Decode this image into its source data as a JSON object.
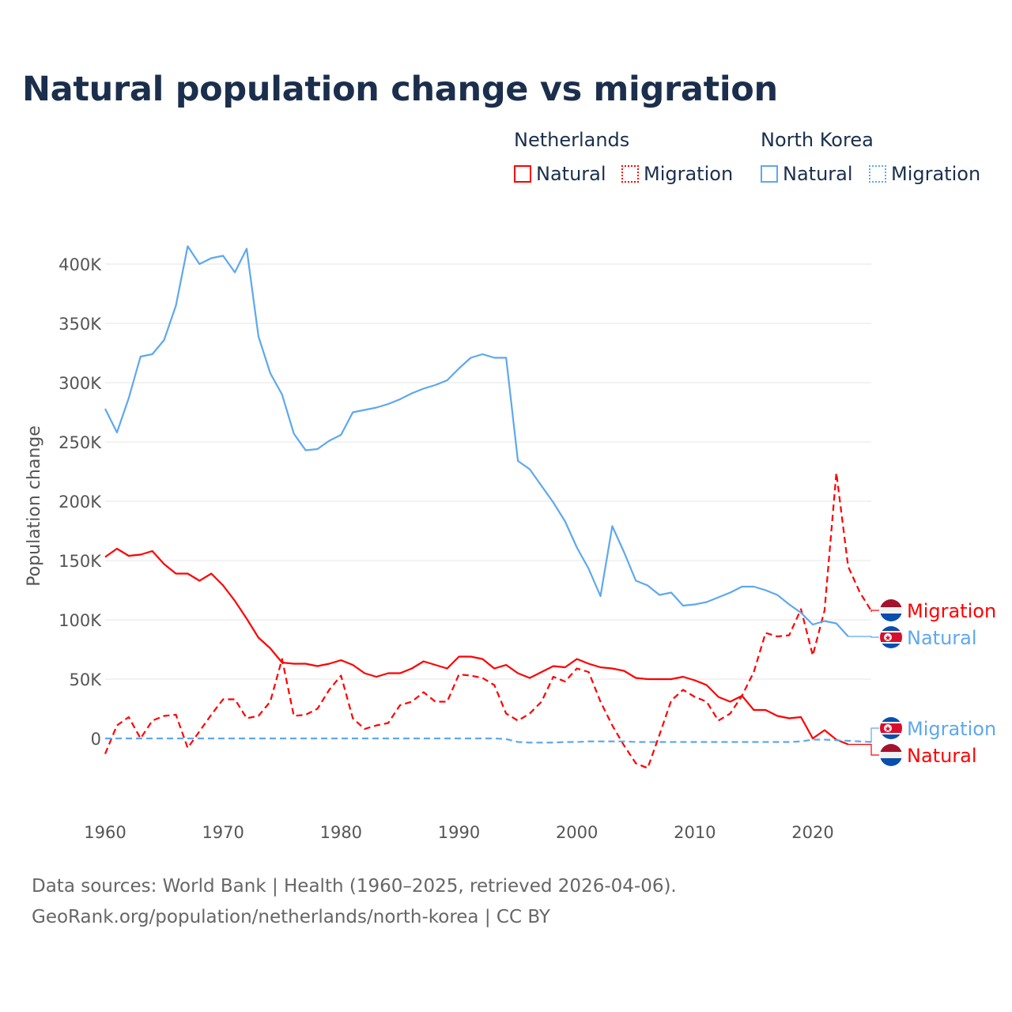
{
  "chart_data": {
    "type": "line",
    "title": "Natural population change vs migration",
    "xlabel": "",
    "ylabel": "Population change",
    "xlim": [
      1960,
      2025
    ],
    "ylim": [
      -50000,
      420000
    ],
    "x_ticks": [
      1960,
      1970,
      1980,
      1990,
      2000,
      2010,
      2020
    ],
    "x_tick_labels": [
      "1960",
      "1970",
      "1980",
      "1990",
      "2000",
      "2010",
      "2020"
    ],
    "y_ticks": [
      0,
      50000,
      100000,
      150000,
      200000,
      250000,
      300000,
      350000,
      400000
    ],
    "y_tick_labels": [
      "0",
      "50K",
      "100K",
      "150K",
      "200K",
      "250K",
      "300K",
      "350K",
      "400K"
    ],
    "grid": true,
    "legend": {
      "placement": "top-right",
      "groups": [
        {
          "name": "Netherlands",
          "items": [
            "Natural",
            "Migration"
          ]
        },
        {
          "name": "North Korea",
          "items": [
            "Natural",
            "Migration"
          ]
        }
      ]
    },
    "series": [
      {
        "id": "nl-natural",
        "country": "Netherlands",
        "name": "Natural",
        "color": "#ff0000",
        "dash": "solid",
        "start_year": 1960,
        "values": [
          153000,
          160000,
          154000,
          155000,
          158000,
          147000,
          139000,
          139000,
          133000,
          139000,
          129000,
          116000,
          101000,
          85000,
          76000,
          64000,
          63000,
          63000,
          61000,
          63000,
          66000,
          62000,
          55000,
          52000,
          55000,
          55000,
          59000,
          65000,
          62000,
          59000,
          69000,
          69000,
          67000,
          59000,
          62000,
          55000,
          51000,
          56000,
          61000,
          60000,
          67000,
          63000,
          60000,
          59000,
          57000,
          51000,
          50000,
          50000,
          50000,
          52000,
          49000,
          45000,
          35000,
          31000,
          36000,
          24000,
          24000,
          19000,
          17000,
          18000,
          0,
          7000,
          -1000,
          -5000
        ]
      },
      {
        "id": "nl-migration",
        "country": "Netherlands",
        "name": "Migration",
        "color": "#ff0000",
        "dash": "dashed",
        "start_year": 1960,
        "values": [
          -13000,
          11000,
          18000,
          0,
          15000,
          19000,
          20000,
          -8000,
          6000,
          20000,
          33000,
          33000,
          17000,
          19000,
          31000,
          67000,
          19000,
          20000,
          25000,
          41000,
          53000,
          17000,
          8000,
          11000,
          13000,
          28000,
          31000,
          39000,
          31000,
          31000,
          54000,
          53000,
          51000,
          45000,
          21000,
          15000,
          21000,
          31000,
          52000,
          48000,
          59000,
          56000,
          31000,
          11000,
          -6000,
          -21000,
          -25000,
          3000,
          32000,
          41000,
          35000,
          31000,
          15000,
          21000,
          36000,
          56000,
          89000,
          86000,
          87000,
          109000,
          70000,
          108000,
          224000,
          145000,
          123000,
          107000
        ]
      },
      {
        "id": "nk-natural",
        "country": "North Korea",
        "name": "Natural",
        "color": "#5ea8ee",
        "dash": "solid",
        "start_year": 1960,
        "values": [
          278000,
          258000,
          287000,
          322000,
          324000,
          336000,
          365000,
          415000,
          400000,
          405000,
          407000,
          393000,
          413000,
          339000,
          308000,
          290000,
          257000,
          243000,
          244000,
          251000,
          256000,
          275000,
          277000,
          279000,
          282000,
          286000,
          291000,
          295000,
          298000,
          302000,
          312000,
          321000,
          324000,
          321000,
          321000,
          234000,
          227000,
          213000,
          199000,
          183000,
          161000,
          143000,
          120000,
          179000,
          157000,
          133000,
          129000,
          121000,
          123000,
          112000,
          113000,
          115000,
          119000,
          123000,
          128000,
          128000,
          125000,
          121000,
          113000,
          106000,
          96000,
          99000,
          97000,
          86000
        ]
      },
      {
        "id": "nk-migration",
        "country": "North Korea",
        "name": "Migration",
        "color": "#5ea8ee",
        "dash": "dashed",
        "start_year": 1960,
        "values": [
          0,
          0,
          0,
          0,
          0,
          0,
          0,
          0,
          0,
          0,
          0,
          0,
          0,
          0,
          0,
          0,
          0,
          0,
          0,
          0,
          0,
          0,
          0,
          0,
          0,
          0,
          0,
          0,
          0,
          0,
          0,
          0,
          0,
          0,
          -500,
          -3000,
          -3500,
          -3500,
          -3500,
          -3000,
          -3000,
          -2500,
          -2500,
          -2500,
          -2500,
          -3000,
          -3000,
          -3000,
          -3000,
          -3000,
          -3000,
          -3000,
          -3000,
          -3000,
          -3000,
          -3000,
          -3000,
          -3000,
          -3000,
          -2500,
          -1000,
          -1000,
          -1500,
          -2000,
          -2500,
          -3000
        ]
      }
    ],
    "end_labels": [
      {
        "series": "nl-migration",
        "text": "Migration",
        "flag": "netherlands"
      },
      {
        "series": "nk-natural",
        "text": "Natural",
        "flag": "north-korea"
      },
      {
        "series": "nk-migration",
        "text": "Migration",
        "flag": "north-korea"
      },
      {
        "series": "nl-natural",
        "text": "Natural",
        "flag": "netherlands"
      }
    ]
  },
  "legend_labels": {
    "netherlands": "Netherlands",
    "north_korea": "North Korea",
    "natural": "Natural",
    "migration": "Migration"
  },
  "footer": {
    "line1": "Data sources: World Bank | Health (1960–2025, retrieved 2026-04-06).",
    "line2": "GeoRank.org/population/netherlands/north-korea | CC BY"
  },
  "colors": {
    "netherlands": "#ff0000",
    "north_korea": "#5ea8ee",
    "title": "#1b2f4d"
  }
}
